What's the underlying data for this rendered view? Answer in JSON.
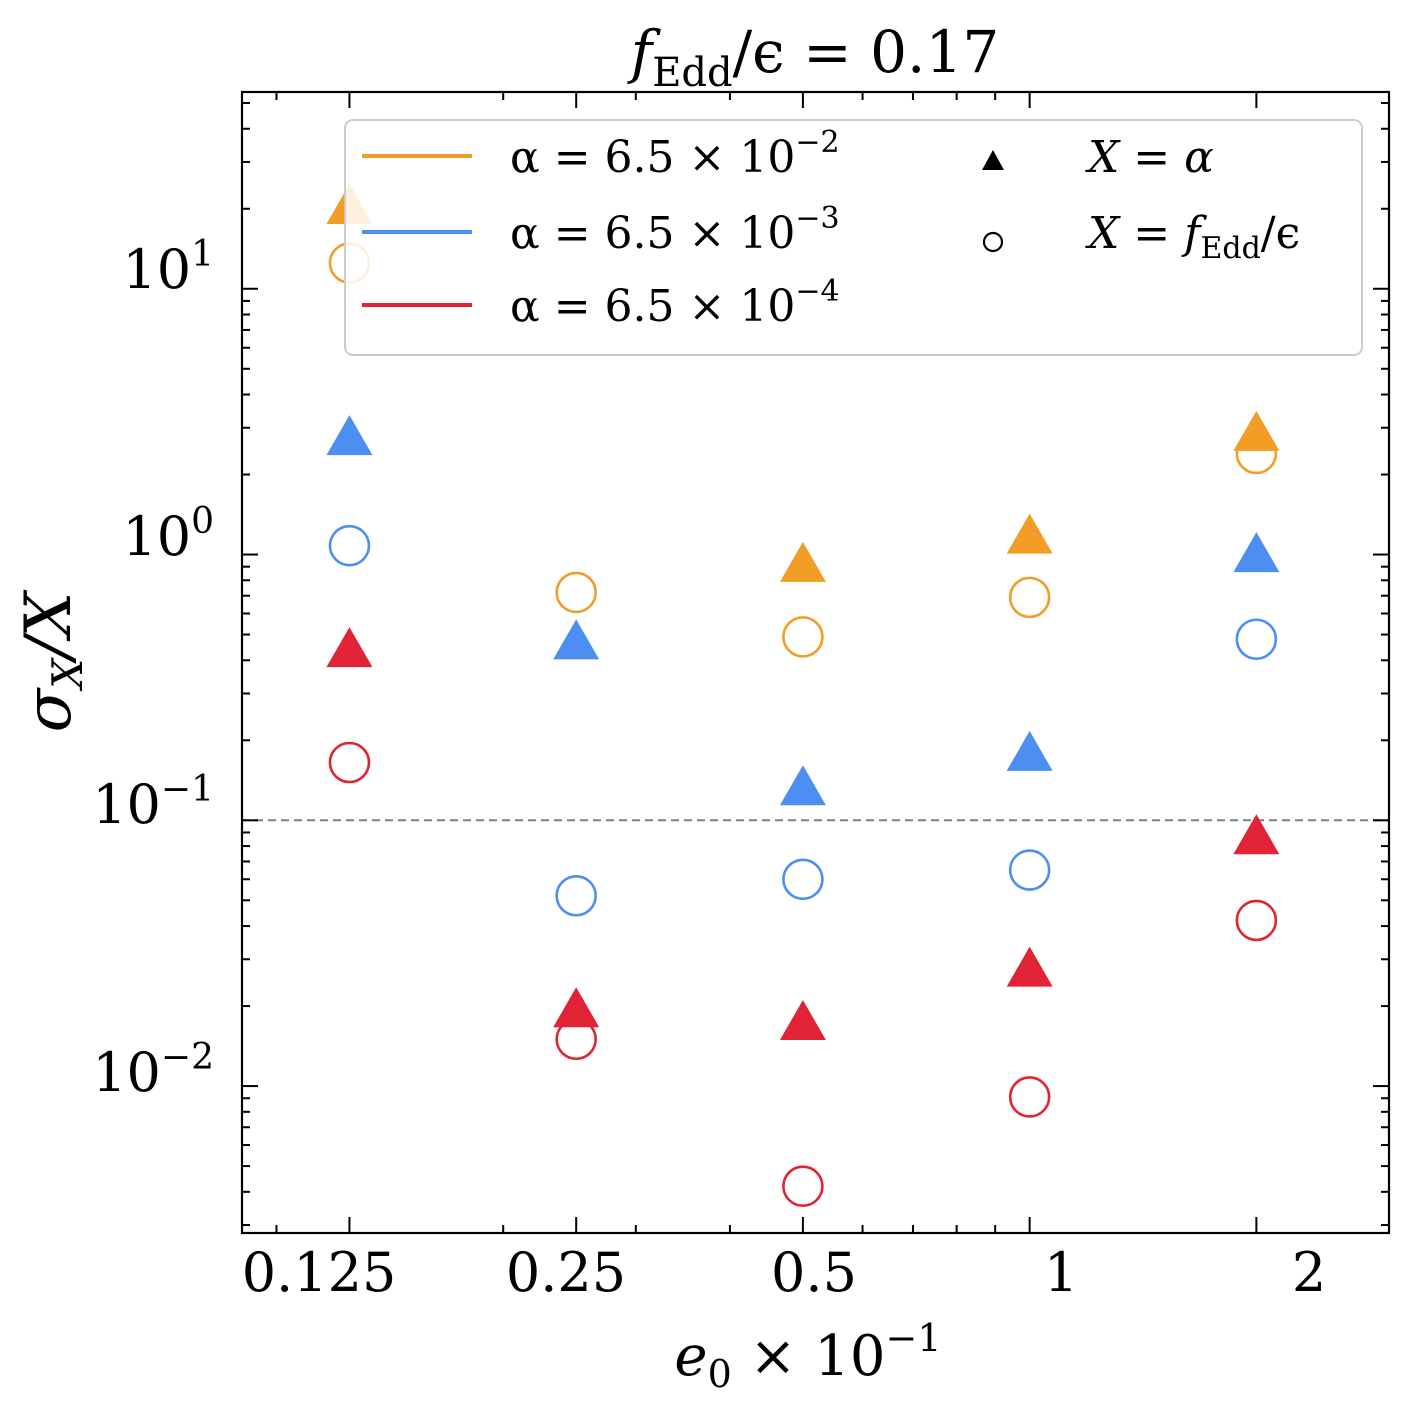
{
  "chart_data": {
    "type": "scatter",
    "title": {
      "var": "f",
      "sub": "Edd",
      "rest": "/ϵ = 0.17"
    },
    "xlabel": {
      "var": "e",
      "sub": "0",
      "rest": " × 10",
      "sup": "−1"
    },
    "ylabel": {
      "var": "σ",
      "sub": "X",
      "rest": "/X"
    },
    "x_scale": "log",
    "y_scale": "log",
    "x_categories": [
      "0.125",
      "0.25",
      "0.5",
      "1",
      "2"
    ],
    "x_values": [
      0.125,
      0.25,
      0.5,
      1,
      2
    ],
    "xlim": [
      0.09,
      3.0
    ],
    "ylim": [
      0.0028,
      55
    ],
    "y_ticks": [
      {
        "value": 10,
        "base": "10",
        "exp": "1"
      },
      {
        "value": 1,
        "base": "10",
        "exp": "0"
      },
      {
        "value": 0.1,
        "base": "10",
        "exp": "−1"
      },
      {
        "value": 0.01,
        "base": "10",
        "exp": "−2"
      }
    ],
    "reference_line": {
      "y": 0.1,
      "style": "dashed",
      "color": "#7f7f7f"
    },
    "colors": {
      "orange": "#f29d26",
      "blue": "#4d8ff0",
      "red": "#e02435"
    },
    "series": [
      {
        "name": "α = 6.5 × 10⁻² (X = α)",
        "color": "#f29d26",
        "marker": "triangle",
        "values": [
          20,
          null,
          0.9,
          1.15,
          2.8
        ]
      },
      {
        "name": "α = 6.5 × 10⁻² (X = f_Edd/ϵ)",
        "color": "#f29d26",
        "marker": "circle",
        "values": [
          12.5,
          0.72,
          0.49,
          0.69,
          2.4
        ]
      },
      {
        "name": "α = 6.5 × 10⁻³ (X = α)",
        "color": "#4d8ff0",
        "marker": "triangle",
        "values": [
          2.7,
          0.46,
          0.13,
          0.175,
          0.98
        ]
      },
      {
        "name": "α = 6.5 × 10⁻³ (X = f_Edd/ϵ)",
        "color": "#4d8ff0",
        "marker": "circle",
        "values": [
          1.08,
          0.052,
          0.06,
          0.065,
          0.48
        ]
      },
      {
        "name": "α = 6.5 × 10⁻⁴ (X = α)",
        "color": "#e02435",
        "marker": "triangle",
        "values": [
          0.43,
          0.019,
          0.017,
          0.027,
          0.085
        ]
      },
      {
        "name": "α = 6.5 × 10⁻⁴ (X = f_Edd/ϵ)",
        "color": "#e02435",
        "marker": "circle",
        "values": [
          0.165,
          0.015,
          0.0042,
          0.0091,
          0.042
        ]
      }
    ],
    "legend": {
      "placement": "top-right",
      "alpha_entries": [
        {
          "color": "#f29d26",
          "prefix": "α = 6.5 × 10",
          "exp": "−2"
        },
        {
          "color": "#4d8ff0",
          "prefix": "α = 6.5 × 10",
          "exp": "−3"
        },
        {
          "color": "#e02435",
          "prefix": "α = 6.5 × 10",
          "exp": "−4"
        }
      ],
      "marker_entries": [
        {
          "marker": "triangle",
          "label": "X = α"
        },
        {
          "marker": "circle",
          "label": "X = ",
          "var": "f",
          "sub": "Edd",
          "rest": "/ϵ"
        }
      ]
    }
  }
}
